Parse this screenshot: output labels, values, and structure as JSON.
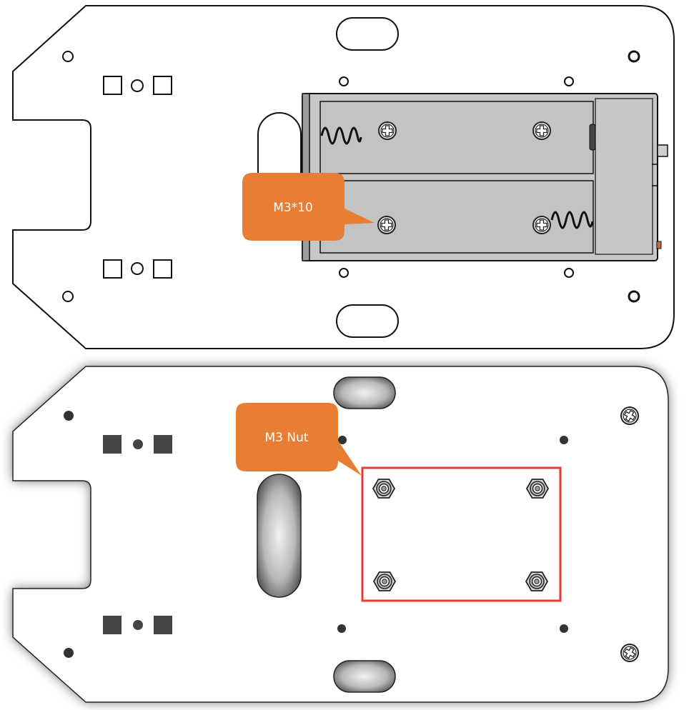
{
  "callouts": {
    "screw": {
      "label": "M3*10",
      "color": "#E87E33"
    },
    "nut": {
      "label": "M3 Nut",
      "color": "#E87E33"
    }
  },
  "highlight": {
    "color": "#E53935"
  }
}
